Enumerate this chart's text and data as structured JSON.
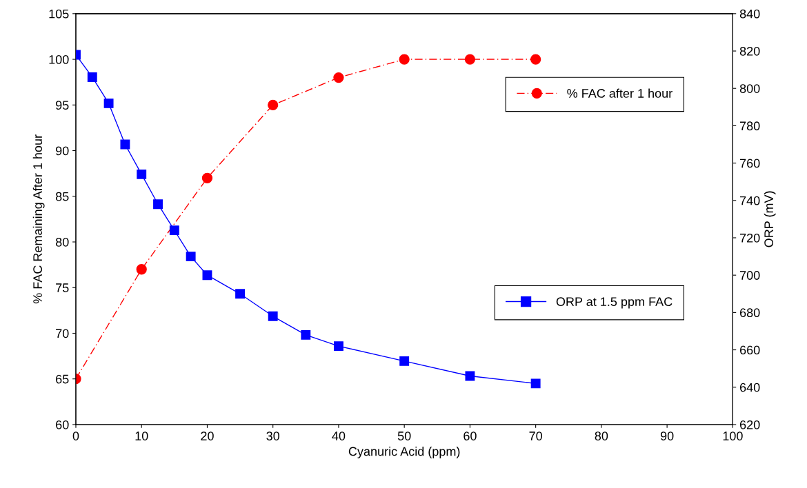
{
  "chart_data": {
    "type": "line",
    "xlabel": "Cyanuric Acid (ppm)",
    "ylabel": "% FAC Remaining After 1 hour",
    "y2label": "ORP (mV)",
    "xlim": [
      0,
      100
    ],
    "xticks": [
      0,
      10,
      20,
      30,
      40,
      50,
      60,
      70,
      80,
      90,
      100
    ],
    "ylim": [
      60,
      105
    ],
    "yticks": [
      60,
      65,
      70,
      75,
      80,
      85,
      90,
      95,
      100,
      105
    ],
    "y2lim": [
      620,
      840
    ],
    "y2ticks": [
      620,
      640,
      660,
      680,
      700,
      720,
      740,
      760,
      780,
      800,
      820,
      840
    ],
    "grid": false,
    "legend": "right",
    "series": [
      {
        "name": "% FAC after 1 hour",
        "color": "#ff0000",
        "marker": "circle",
        "line_style": "dashed",
        "axis": "y",
        "x": [
          0,
          10,
          20,
          30,
          40,
          50,
          60,
          70
        ],
        "values": [
          65,
          77,
          87,
          95,
          98,
          100,
          100,
          100
        ]
      },
      {
        "name": "ORP at 1.5 ppm FAC",
        "color": "#0000ff",
        "marker": "square",
        "line_style": "solid",
        "axis": "y2",
        "x": [
          0,
          2.5,
          5,
          7.5,
          10,
          12.5,
          15,
          17.5,
          20,
          25,
          30,
          35,
          40,
          50,
          60,
          70
        ],
        "values": [
          818,
          806,
          792,
          770,
          754,
          738,
          724,
          710,
          700,
          690,
          678,
          668,
          662,
          654,
          646,
          642
        ]
      }
    ]
  }
}
